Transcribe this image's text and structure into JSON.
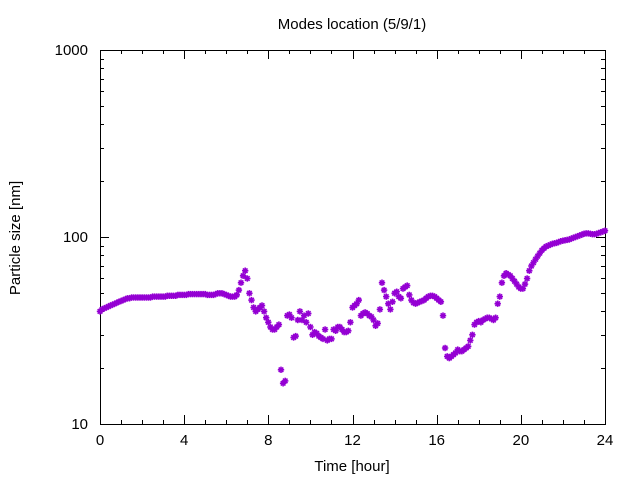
{
  "chart_data": {
    "type": "scatter",
    "title": "Modes location (5/9/1)",
    "xlabel": "Time [hour]",
    "ylabel": "Particle size [nm]",
    "xlim": [
      0,
      24
    ],
    "ylim": [
      10,
      1000
    ],
    "yscale": "log",
    "xticks": [
      "0",
      "4",
      "8",
      "12",
      "16",
      "20",
      "24"
    ],
    "yticks": [
      "10",
      "100",
      "1000"
    ],
    "grid": false,
    "marker_color": "#9400d3",
    "series": [
      {
        "x": [
          0.0,
          0.1,
          0.2,
          0.3,
          0.4,
          0.5,
          0.6,
          0.7,
          0.8,
          0.9,
          1.0,
          1.1,
          1.2,
          1.3,
          1.4,
          1.5,
          1.6,
          1.7,
          1.8,
          1.9,
          2.0,
          2.1,
          2.2,
          2.3,
          2.4,
          2.5,
          2.6,
          2.7,
          2.8,
          2.9,
          3.0,
          3.1,
          3.2,
          3.3,
          3.4,
          3.5,
          3.6,
          3.7,
          3.8,
          3.9,
          4.0,
          4.1,
          4.2,
          4.3,
          4.4,
          4.5,
          4.6,
          4.7,
          4.8,
          4.9,
          5.0,
          5.1,
          5.2,
          5.3,
          5.4,
          5.5,
          5.6,
          5.7,
          5.8,
          5.9,
          6.0,
          6.1,
          6.2,
          6.3,
          6.4,
          6.5,
          6.6,
          6.7,
          6.8,
          6.9,
          7.0,
          7.1,
          7.2,
          7.3,
          7.4,
          7.5,
          7.6,
          7.7,
          7.8,
          7.9,
          8.0,
          8.1,
          8.2,
          8.3,
          8.4,
          8.5,
          8.6,
          8.7,
          8.8,
          8.9,
          9.0,
          9.1,
          9.2,
          9.3,
          9.4,
          9.5,
          9.6,
          9.7,
          9.8,
          9.9,
          10.0,
          10.1,
          10.2,
          10.3,
          10.4,
          10.5,
          10.6,
          10.7,
          10.8,
          10.9,
          11.0,
          11.1,
          11.2,
          11.3,
          11.4,
          11.5,
          11.6,
          11.7,
          11.8,
          11.9,
          12.0,
          12.1,
          12.2,
          12.3,
          12.4,
          12.5,
          12.6,
          12.7,
          12.8,
          12.9,
          13.0,
          13.1,
          13.2,
          13.3,
          13.4,
          13.5,
          13.6,
          13.7,
          13.8,
          13.9,
          14.0,
          14.1,
          14.2,
          14.3,
          14.4,
          14.5,
          14.6,
          14.7,
          14.8,
          14.9,
          15.0,
          15.1,
          15.2,
          15.3,
          15.4,
          15.5,
          15.6,
          15.7,
          15.8,
          15.9,
          16.0,
          16.1,
          16.2,
          16.3,
          16.4,
          16.5,
          16.6,
          16.7,
          16.8,
          16.9,
          17.0,
          17.1,
          17.2,
          17.3,
          17.4,
          17.5,
          17.6,
          17.7,
          17.8,
          17.9,
          18.0,
          18.1,
          18.2,
          18.3,
          18.4,
          18.5,
          18.6,
          18.7,
          18.8,
          18.9,
          19.0,
          19.1,
          19.2,
          19.3,
          19.4,
          19.5,
          19.6,
          19.7,
          19.8,
          19.9,
          20.0,
          20.1,
          20.2,
          20.3,
          20.4,
          20.5,
          20.6,
          20.7,
          20.8,
          20.9,
          21.0,
          21.1,
          21.2,
          21.3,
          21.4,
          21.5,
          21.6,
          21.7,
          21.8,
          21.9,
          22.0,
          22.1,
          22.2,
          22.3,
          22.4,
          22.5,
          22.6,
          22.7,
          22.8,
          22.9,
          23.0,
          23.1,
          23.2,
          23.3,
          23.4,
          23.5,
          23.6,
          23.7,
          23.8,
          23.9,
          24.0
        ],
        "y": [
          40.0,
          41.0,
          41.5,
          42.0,
          42.5,
          43.0,
          43.5,
          44.0,
          44.5,
          45.0,
          45.5,
          46.0,
          46.5,
          47.0,
          47.0,
          47.5,
          47.5,
          47.5,
          47.5,
          47.5,
          47.5,
          47.5,
          47.5,
          47.5,
          47.5,
          48.0,
          48.0,
          48.0,
          48.0,
          48.0,
          48.0,
          48.0,
          48.5,
          48.5,
          48.5,
          48.5,
          48.5,
          49.0,
          49.0,
          49.0,
          49.0,
          49.0,
          49.5,
          49.5,
          49.5,
          49.5,
          49.5,
          49.5,
          49.5,
          49.5,
          49.5,
          49.0,
          49.0,
          49.0,
          49.0,
          49.5,
          50.0,
          50.0,
          50.0,
          49.5,
          49.0,
          48.5,
          48.0,
          48.0,
          48.0,
          49.0,
          52.0,
          57.0,
          62.0,
          66.0,
          60.0,
          50.0,
          46.0,
          42.0,
          40.0,
          41.0,
          42.0,
          43.0,
          40.0,
          37.0,
          35.0,
          33.0,
          32.0,
          32.0,
          33.0,
          34.0,
          19.5,
          16.5,
          17.0,
          38.0,
          38.5,
          37.0,
          29.0,
          29.5,
          36.0,
          40.0,
          36.0,
          38.0,
          35.0,
          39.0,
          33.0,
          30.0,
          31.0,
          30.5,
          29.5,
          29.0,
          28.5,
          32.0,
          28.0,
          28.5,
          28.5,
          32.0,
          31.5,
          33.0,
          33.0,
          32.0,
          31.0,
          31.0,
          31.5,
          35.0,
          42.0,
          43.0,
          44.0,
          46.0,
          38.0,
          39.0,
          39.5,
          39.0,
          38.0,
          37.5,
          36.0,
          33.5,
          34.5,
          41.0,
          57.0,
          52.0,
          48.0,
          44.0,
          41.0,
          45.0,
          50.0,
          51.0,
          48.0,
          47.0,
          53.0,
          54.0,
          55.0,
          49.0,
          46.0,
          44.5,
          44.0,
          44.5,
          45.0,
          45.5,
          46.0,
          47.0,
          48.0,
          48.5,
          48.5,
          48.0,
          47.0,
          46.0,
          45.0,
          38.0,
          25.5,
          23.0,
          22.5,
          23.0,
          23.5,
          24.0,
          25.0,
          24.5,
          24.5,
          25.0,
          25.5,
          26.0,
          28.0,
          30.0,
          34.0,
          35.0,
          35.5,
          35.0,
          36.0,
          36.5,
          37.0,
          37.0,
          36.5,
          36.0,
          37.0,
          44.0,
          48.0,
          57.0,
          62.0,
          64.0,
          63.0,
          62.0,
          60.0,
          58.0,
          56.0,
          54.0,
          53.0,
          53.0,
          56.0,
          60.0,
          66.0,
          70.0,
          73.0,
          76.0,
          79.0,
          82.0,
          85.0,
          87.0,
          89.0,
          90.0,
          91.0,
          92.0,
          92.5,
          93.0,
          94.0,
          95.0,
          95.5,
          96.0,
          96.5,
          97.0,
          98.0,
          99.0,
          100.0,
          101.0,
          102.0,
          103.0,
          104.0,
          104.5,
          104.5,
          104.0,
          103.5,
          103.5,
          104.0,
          105.0,
          106.0,
          107.0,
          108.0
        ]
      }
    ]
  }
}
